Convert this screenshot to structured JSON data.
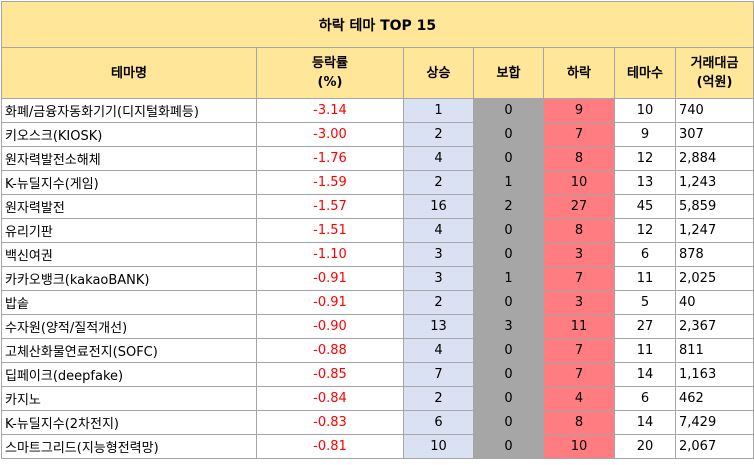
{
  "title": "하락 테마 TOP 15",
  "headers": {
    "theme": "테마명",
    "rate_line1": "등락률",
    "rate_line2": "(%)",
    "up": "상승",
    "flat": "보합",
    "down": "하락",
    "count": "테마수",
    "volume_line1": "거래대금",
    "volume_line2": "(억원)"
  },
  "colors": {
    "header_bg": "#ffe699",
    "rate_text": "#ff0000",
    "up_bg": "#d9e1f2",
    "flat_bg": "#a6a6a6",
    "down_bg": "#ff7c80"
  },
  "rows": [
    {
      "name": "화폐/금융자동화기기(디지털화폐등)",
      "rate": "-3.14",
      "up": "1",
      "flat": "0",
      "down": "9",
      "count": "10",
      "volume": "740"
    },
    {
      "name": "키오스크(KIOSK)",
      "rate": "-3.00",
      "up": "2",
      "flat": "0",
      "down": "7",
      "count": "9",
      "volume": "307"
    },
    {
      "name": "원자력발전소해체",
      "rate": "-1.76",
      "up": "4",
      "flat": "0",
      "down": "8",
      "count": "12",
      "volume": "2,884"
    },
    {
      "name": "K-뉴딜지수(게임)",
      "rate": "-1.59",
      "up": "2",
      "flat": "1",
      "down": "10",
      "count": "13",
      "volume": "1,243"
    },
    {
      "name": "원자력발전",
      "rate": "-1.57",
      "up": "16",
      "flat": "2",
      "down": "27",
      "count": "45",
      "volume": "5,859"
    },
    {
      "name": "유리기판",
      "rate": "-1.51",
      "up": "4",
      "flat": "0",
      "down": "8",
      "count": "12",
      "volume": "1,247"
    },
    {
      "name": "백신여권",
      "rate": "-1.10",
      "up": "3",
      "flat": "0",
      "down": "3",
      "count": "6",
      "volume": "878"
    },
    {
      "name": "카카오뱅크(kakaoBANK)",
      "rate": "-0.91",
      "up": "3",
      "flat": "1",
      "down": "7",
      "count": "11",
      "volume": "2,025"
    },
    {
      "name": "밥솥",
      "rate": "-0.91",
      "up": "2",
      "flat": "0",
      "down": "3",
      "count": "5",
      "volume": "40"
    },
    {
      "name": "수자원(양적/질적개선)",
      "rate": "-0.90",
      "up": "13",
      "flat": "3",
      "down": "11",
      "count": "27",
      "volume": "2,367"
    },
    {
      "name": "고체산화물연료전지(SOFC)",
      "rate": "-0.88",
      "up": "4",
      "flat": "0",
      "down": "7",
      "count": "11",
      "volume": "811"
    },
    {
      "name": "딥페이크(deepfake)",
      "rate": "-0.85",
      "up": "7",
      "flat": "0",
      "down": "7",
      "count": "14",
      "volume": "1,163"
    },
    {
      "name": "카지노",
      "rate": "-0.84",
      "up": "2",
      "flat": "0",
      "down": "4",
      "count": "6",
      "volume": "462"
    },
    {
      "name": "K-뉴딜지수(2차전지)",
      "rate": "-0.83",
      "up": "6",
      "flat": "0",
      "down": "8",
      "count": "14",
      "volume": "7,429"
    },
    {
      "name": "스마트그리드(지능형전력망)",
      "rate": "-0.81",
      "up": "10",
      "flat": "0",
      "down": "10",
      "count": "20",
      "volume": "2,067"
    }
  ]
}
